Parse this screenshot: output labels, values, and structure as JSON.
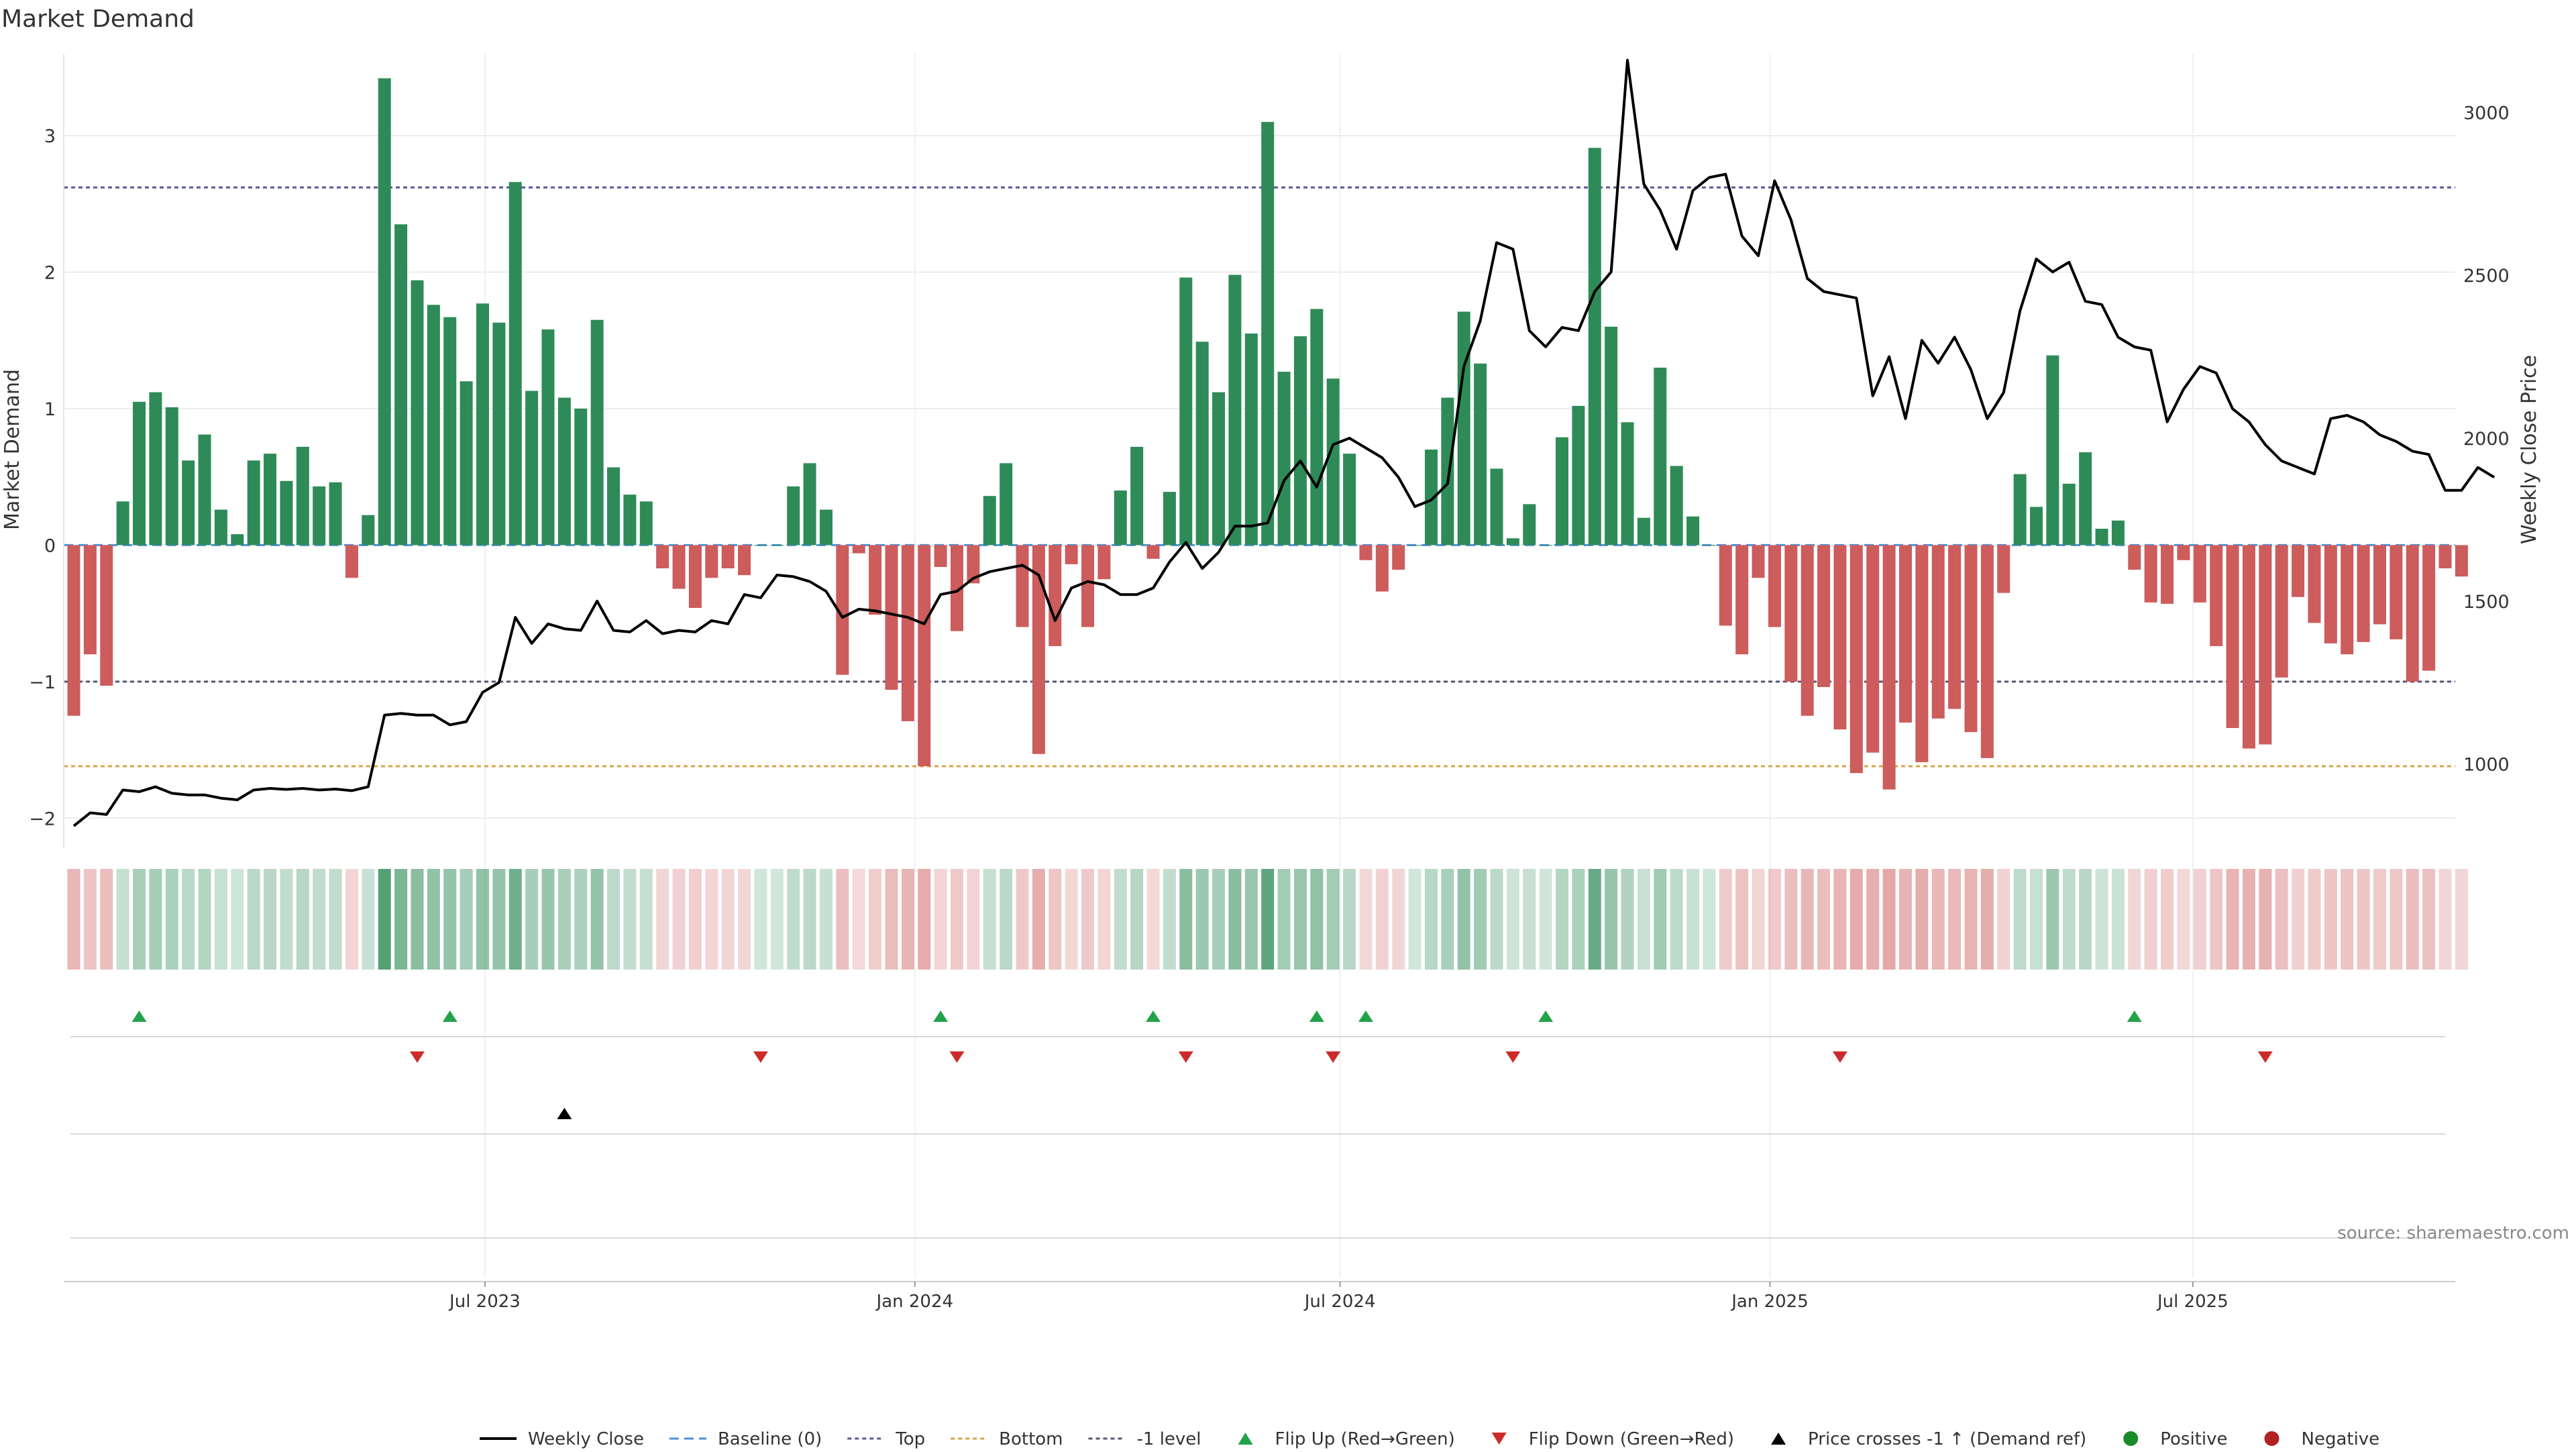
{
  "title": "Market Demand",
  "source": "source: sharemaestro.com",
  "colors": {
    "positive": "#2e8b57",
    "negative": "#cd5c5c",
    "price_line": "#000000",
    "baseline": "#4a90d9",
    "top": "#5a5a9a",
    "bottom": "#d4a64a",
    "minus1": "#555577",
    "flip_up": "#22a34a",
    "flip_down": "#cc2b2b",
    "cross_marker": "#000000",
    "legend_positive": "#1a8a2a",
    "legend_negative": "#b22222"
  },
  "legend": {
    "weekly_close": "Weekly Close",
    "baseline": "Baseline (0)",
    "top": "Top",
    "bottom": "Bottom",
    "minus1": "-1 level",
    "flip_up": "Flip Up (Red→Green)",
    "flip_down": "Flip Down (Green→Red)",
    "price_cross": "Price crosses -1 ↑ (Demand ref)",
    "positive": "Positive",
    "negative": "Negative"
  },
  "chart_data": {
    "type": "bar",
    "ylabel": "Market Demand",
    "y2label": "Weekly Close Price",
    "ylim": [
      -2.2,
      3.6
    ],
    "y2lim": [
      750,
      3180
    ],
    "yticks": [
      -2,
      -1,
      0,
      1,
      2,
      3
    ],
    "y2ticks": [
      1000,
      1500,
      2000,
      2500,
      3000
    ],
    "top_level": 2.62,
    "bottom_level": -1.62,
    "minus1_level": -1,
    "x_start_date": "2023-01-06",
    "x_end_date": "2025-10-17",
    "x_ticks": [
      {
        "label": "Jul 2023",
        "date": "2023-07-01"
      },
      {
        "label": "Jan 2024",
        "date": "2024-01-01"
      },
      {
        "label": "Jul 2024",
        "date": "2024-07-01"
      },
      {
        "label": "Jan 2025",
        "date": "2025-01-01"
      },
      {
        "label": "Jul 2025",
        "date": "2025-07-01"
      }
    ],
    "demand": [
      -1.25,
      -0.8,
      -1.03,
      0.32,
      1.05,
      1.12,
      1.01,
      0.62,
      0.81,
      0.26,
      0.08,
      0.62,
      0.67,
      0.47,
      0.72,
      0.43,
      0.46,
      -0.24,
      0.22,
      3.42,
      2.35,
      1.94,
      1.76,
      1.67,
      1.2,
      1.77,
      1.63,
      2.66,
      1.13,
      1.58,
      1.08,
      1.0,
      1.65,
      0.57,
      0.37,
      0.32,
      -0.17,
      -0.32,
      -0.46,
      -0.24,
      -0.17,
      -0.22,
      0.0,
      0.0,
      0.43,
      0.6,
      0.26,
      -0.95,
      -0.06,
      -0.51,
      -1.06,
      -1.29,
      -1.62,
      -0.16,
      -0.63,
      -0.28,
      0.36,
      0.6,
      -0.6,
      -1.53,
      -0.74,
      -0.14,
      -0.6,
      -0.25,
      0.4,
      0.72,
      -0.1,
      0.39,
      1.96,
      1.49,
      1.12,
      1.98,
      1.55,
      3.1,
      1.27,
      1.53,
      1.73,
      1.22,
      0.67,
      -0.11,
      -0.34,
      -0.18,
      0.0,
      0.7,
      1.08,
      1.71,
      1.33,
      0.56,
      0.05,
      0.3,
      0.0,
      0.79,
      1.02,
      2.91,
      1.6,
      0.9,
      0.2,
      1.3,
      0.58,
      0.21,
      0.0,
      -0.59,
      -0.8,
      -0.24,
      -0.6,
      -1.0,
      -1.25,
      -1.04,
      -1.35,
      -1.67,
      -1.52,
      -1.79,
      -1.3,
      -1.59,
      -1.27,
      -1.2,
      -1.37,
      -1.56,
      -0.35,
      0.52,
      0.28,
      1.39,
      0.45,
      0.68,
      0.12,
      0.18,
      -0.18,
      -0.42,
      -0.43,
      -0.11,
      -0.42,
      -0.74,
      -1.34,
      -1.49,
      -1.46,
      -0.97,
      -0.38,
      -0.57,
      -0.72,
      -0.8,
      -0.71,
      -0.58,
      -0.69,
      -1.0,
      -0.92,
      -0.17,
      -0.23
    ],
    "price": [
      810,
      850,
      845,
      920,
      915,
      930,
      910,
      905,
      905,
      895,
      890,
      920,
      925,
      922,
      925,
      920,
      923,
      918,
      930,
      1150,
      1155,
      1150,
      1150,
      1120,
      1130,
      1220,
      1250,
      1450,
      1370,
      1430,
      1415,
      1410,
      1500,
      1410,
      1405,
      1440,
      1400,
      1410,
      1405,
      1440,
      1430,
      1520,
      1510,
      1580,
      1575,
      1560,
      1530,
      1450,
      1475,
      1470,
      1460,
      1450,
      1430,
      1520,
      1530,
      1570,
      1590,
      1600,
      1610,
      1580,
      1440,
      1540,
      1560,
      1550,
      1520,
      1520,
      1540,
      1620,
      1680,
      1600,
      1650,
      1730,
      1730,
      1740,
      1870,
      1930,
      1850,
      1980,
      2000,
      1970,
      1940,
      1880,
      1790,
      1810,
      1860,
      2220,
      2360,
      2600,
      2580,
      2330,
      2280,
      2340,
      2330,
      2450,
      2510,
      3160,
      2780,
      2700,
      2580,
      2760,
      2800,
      2810,
      2620,
      2560,
      2790,
      2670,
      2490,
      2450,
      2440,
      2430,
      2130,
      2250,
      2060,
      2300,
      2230,
      2310,
      2210,
      2060,
      2140,
      2390,
      2550,
      2510,
      2540,
      2420,
      2410,
      2310,
      2280,
      2270,
      2050,
      2150,
      2220,
      2200,
      2090,
      2050,
      1980,
      1930,
      1910,
      1890,
      2060,
      2070,
      2050,
      2010,
      1990,
      1960,
      1950,
      1840,
      1840,
      1910,
      1880
    ],
    "flip_up_dates": [
      "2023-02-03",
      "2023-06-16",
      "2024-01-12",
      "2024-04-12",
      "2024-06-21",
      "2024-07-12",
      "2024-09-27",
      "2025-06-06"
    ],
    "flip_down_dates": [
      "2023-06-02",
      "2023-10-27",
      "2024-01-19",
      "2024-04-26",
      "2024-06-28",
      "2024-09-13",
      "2025-01-31",
      "2025-08-01"
    ],
    "price_cross_dates": [
      "2023-08-04"
    ]
  }
}
